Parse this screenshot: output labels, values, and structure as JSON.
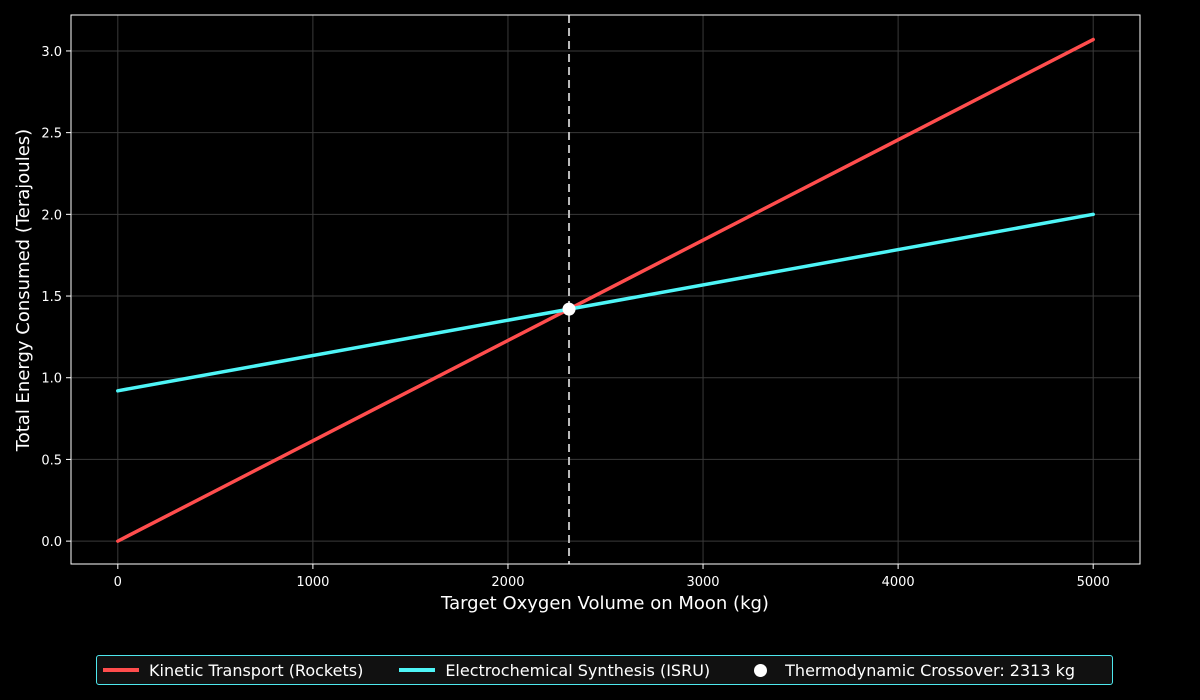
{
  "colors": {
    "background": "#000000",
    "axes_frame": "#ffffff",
    "grid": "#3a3a3a",
    "rockets": "#ff4d4d",
    "isru": "#4ef5f7",
    "crossover": "#ffffff",
    "crossover_line": "#bbbbbb",
    "legend_border": "#4ee8ee",
    "legend_bg": "#111111"
  },
  "chart_data": {
    "type": "line",
    "xlabel": "Target Oxygen Volume on Moon (kg)",
    "ylabel": "Total Energy Consumed (Terajoules)",
    "xlim": [
      -240,
      5240
    ],
    "ylim": [
      -0.14,
      3.22
    ],
    "xticks": [
      0,
      1000,
      2000,
      3000,
      4000,
      5000
    ],
    "xtick_labels": [
      "0",
      "1000",
      "2000",
      "3000",
      "4000",
      "5000"
    ],
    "yticks": [
      0.0,
      0.5,
      1.0,
      1.5,
      2.0,
      2.5,
      3.0
    ],
    "ytick_labels": [
      "0.0",
      "0.5",
      "1.0",
      "1.5",
      "2.0",
      "2.5",
      "3.0"
    ],
    "grid": true,
    "legend_position": "bottom-center",
    "series": [
      {
        "name": "Kinetic Transport (Rockets)",
        "color": "#ff4d4d",
        "x": [
          0,
          5000
        ],
        "y": [
          0.0,
          3.07
        ]
      },
      {
        "name": "Electrochemical Synthesis (ISRU)",
        "color": "#4ef5f7",
        "x": [
          0,
          5000
        ],
        "y": [
          0.92,
          2.0
        ]
      }
    ],
    "crossover": {
      "name": "Thermodynamic Crossover: 2313 kg",
      "x": 2313,
      "y": 1.42
    }
  }
}
